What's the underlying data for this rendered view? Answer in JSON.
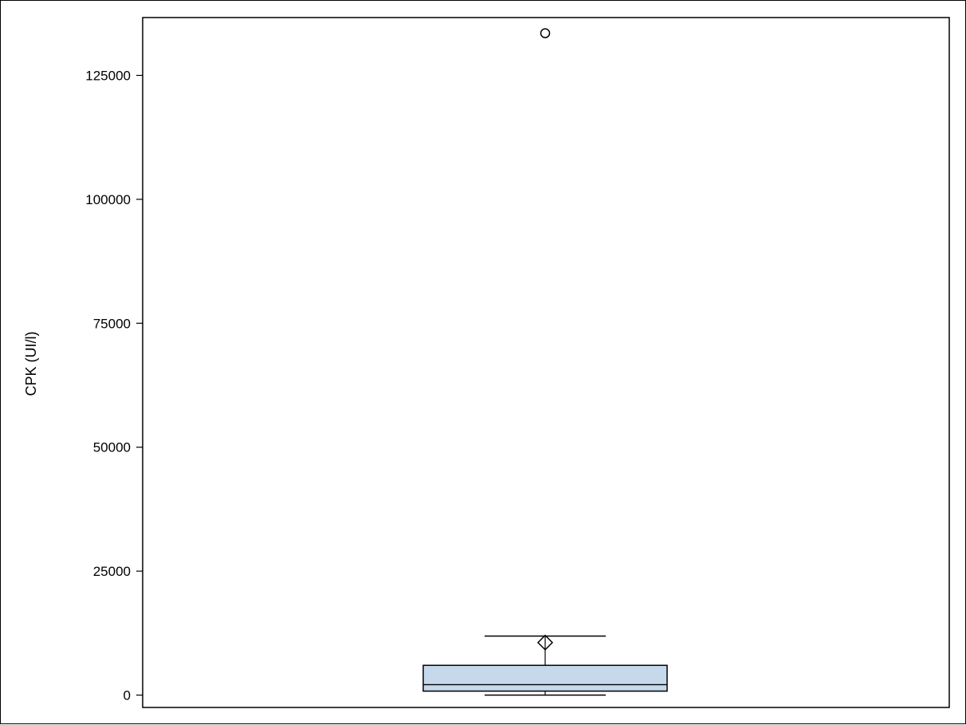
{
  "chart_data": {
    "type": "box",
    "title": "",
    "xlabel": "",
    "ylabel": "CPK (UI/l)",
    "ylim": [
      -2000,
      136000
    ],
    "yticks": [
      0,
      25000,
      50000,
      75000,
      100000,
      125000
    ],
    "ytick_labels": [
      "0",
      "25000",
      "50000",
      "75000",
      "100000",
      "125000"
    ],
    "grid": false,
    "legend": "none",
    "box": {
      "min": 0,
      "q1": 800,
      "median": 2100,
      "q3": 6000,
      "whisker_low": 0,
      "whisker_high": 11900,
      "mean": 10600,
      "outliers": [
        133500
      ]
    },
    "colors": {
      "box_fill": "#c6d8ec",
      "line": "#000000"
    }
  }
}
